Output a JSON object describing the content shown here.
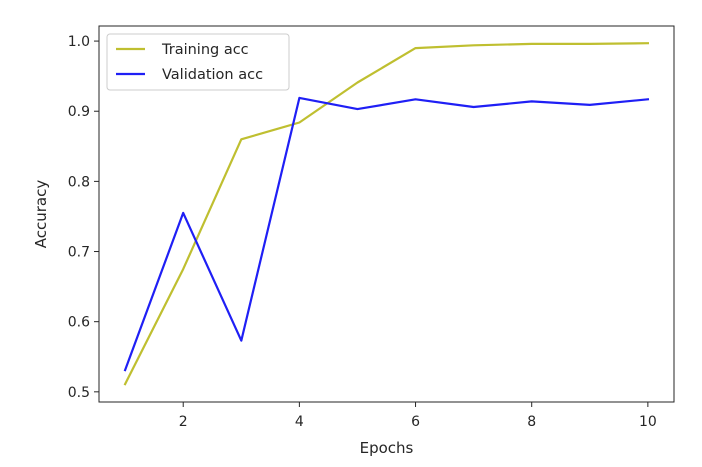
{
  "chart_data": {
    "type": "line",
    "xlabel": "Epochs",
    "ylabel": "Accuracy",
    "x": [
      1,
      2,
      3,
      4,
      5,
      6,
      7,
      8,
      9,
      10
    ],
    "xlim": [
      0.55,
      10.45
    ],
    "ylim": [
      0.4855,
      1.0215
    ],
    "xticks": [
      2,
      4,
      6,
      8,
      10
    ],
    "yticks": [
      0.5,
      0.6,
      0.7,
      0.8,
      0.9,
      1.0
    ],
    "xtick_labels": [
      "2",
      "4",
      "6",
      "8",
      "10"
    ],
    "ytick_labels": [
      "0.5",
      "0.6",
      "0.7",
      "0.8",
      "0.9",
      "1.0"
    ],
    "grid": false,
    "legend_position": "top-left",
    "series": [
      {
        "name": "Training acc",
        "color": "#bfbf30",
        "values": [
          0.511,
          0.675,
          0.86,
          0.884,
          0.941,
          0.99,
          0.994,
          0.996,
          0.996,
          0.997
        ]
      },
      {
        "name": "Validation acc",
        "color": "#1f1ff5",
        "values": [
          0.531,
          0.755,
          0.573,
          0.919,
          0.903,
          0.917,
          0.906,
          0.914,
          0.909,
          0.917
        ]
      }
    ]
  }
}
